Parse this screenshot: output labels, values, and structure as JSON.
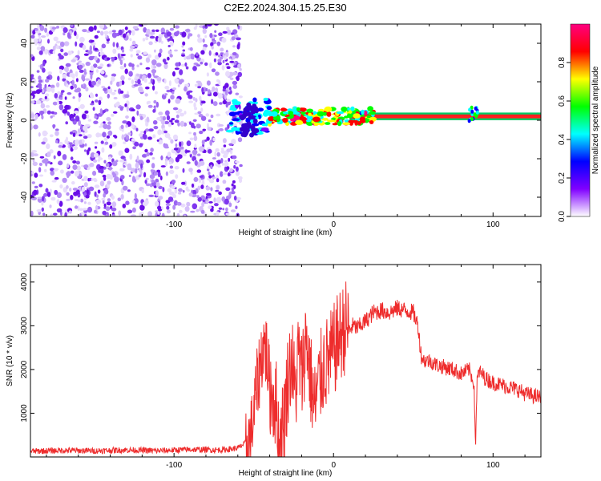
{
  "title": "C2E2.2024.304.15.25.E30",
  "chart_data": [
    {
      "type": "heatmap",
      "xlabel": "Height of straight line (km)",
      "ylabel": "Frequency (Hz)",
      "xlim": [
        -190,
        130
      ],
      "ylim": [
        -50,
        50
      ],
      "xticks": [
        -100,
        0,
        100
      ],
      "yticks": [
        -40,
        -20,
        0,
        20,
        40
      ],
      "noise_region_x": [
        -190,
        -58
      ],
      "signal_band": {
        "x_start": -65,
        "x_end": 130,
        "frequency_center": 2,
        "frequency_halfwidth": 2
      },
      "colorbar": {
        "label": "Normalized spectral amplitude",
        "range": [
          0,
          1
        ],
        "ticks": [
          0.0,
          0.2,
          0.4,
          0.6,
          0.8
        ],
        "tick_labels": [
          "0.0",
          "0.2",
          "0.4",
          "0.6",
          "0.8"
        ],
        "colormap": [
          "#ffffff",
          "#8000ff",
          "#0000ff",
          "#00ffff",
          "#00ff00",
          "#ffff00",
          "#ff0000",
          "#ff0080"
        ]
      }
    },
    {
      "type": "line",
      "xlabel": "Height of straight line (km)",
      "ylabel": "SNR (10 * v/v)",
      "xlim": [
        -190,
        130
      ],
      "ylim": [
        0,
        4400
      ],
      "xticks": [
        -100,
        0,
        100
      ],
      "yticks": [
        1000,
        2000,
        3000,
        4000
      ],
      "color": "#ee2c2c",
      "series": [
        {
          "x": [
            -190,
            -170,
            -150,
            -130,
            -110,
            -90,
            -70,
            -60,
            -52,
            -48,
            -46,
            -44,
            -42,
            -40,
            -36,
            -34,
            -31,
            -28,
            -26,
            -24,
            -22,
            -20,
            -17,
            -15,
            -12,
            -9,
            -6,
            -3,
            0,
            3,
            6,
            8,
            10,
            12,
            15,
            20,
            25,
            30,
            35,
            40,
            45,
            50,
            53,
            55,
            57,
            60,
            65,
            70,
            75,
            80,
            85,
            88,
            89,
            90,
            91,
            93,
            95,
            100,
            105,
            110,
            115,
            120,
            125,
            130
          ],
          "y": [
            130,
            150,
            140,
            160,
            140,
            170,
            160,
            200,
            400,
            1600,
            2100,
            2600,
            2400,
            1600,
            1200,
            200,
            900,
            2000,
            2200,
            1400,
            2400,
            1800,
            2800,
            2000,
            1100,
            1700,
            2100,
            2200,
            2400,
            2700,
            2900,
            3000,
            2900,
            3000,
            2950,
            3100,
            3300,
            3350,
            3300,
            3400,
            3350,
            3300,
            3000,
            2300,
            2200,
            2200,
            2100,
            2050,
            2000,
            1900,
            2000,
            1700,
            300,
            1700,
            1950,
            1900,
            1800,
            1700,
            1650,
            1600,
            1550,
            1450,
            1400,
            1350
          ]
        }
      ]
    }
  ]
}
